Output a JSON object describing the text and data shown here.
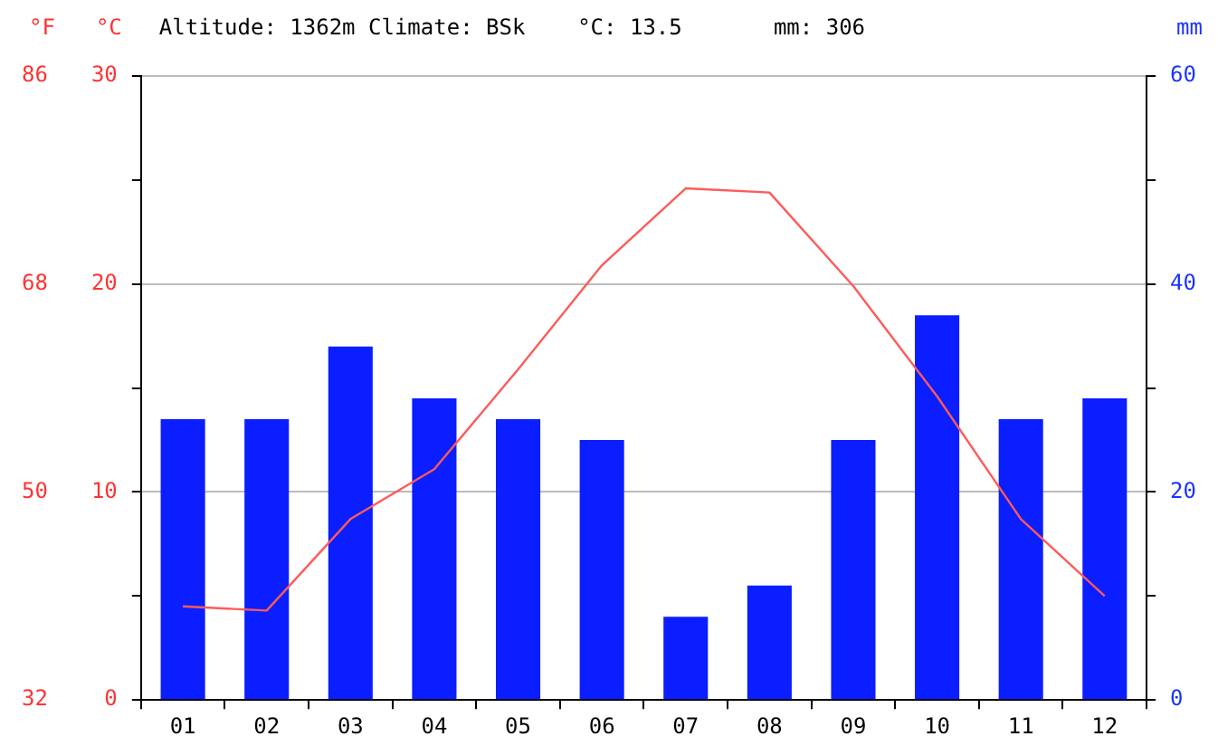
{
  "chart_data": {
    "type": "bar",
    "title": "Altitude: 1362m Climate: BSk    °C: 13.5       mm: 306",
    "categories": [
      "01",
      "02",
      "03",
      "04",
      "05",
      "06",
      "07",
      "08",
      "09",
      "10",
      "11",
      "12"
    ],
    "series": [
      {
        "axis": "y2",
        "color": "#0a1eff",
        "values": [
          27,
          27,
          34,
          29,
          27,
          25,
          8,
          11,
          25,
          37,
          27,
          29
        ]
      },
      {
        "type": "line",
        "axis": "y",
        "color": "#ff5a5a",
        "values": [
          4.5,
          4.3,
          8.7,
          11.1,
          15.9,
          20.9,
          24.6,
          24.4,
          19.9,
          14.6,
          8.7,
          5.0
        ]
      }
    ],
    "ylabel": "°C",
    "ylim": [
      0,
      30
    ],
    "yticks": [
      0,
      {
        "value": 5,
        "label": null
      },
      10,
      {
        "value": 15,
        "label": null
      },
      20,
      {
        "value": 25,
        "label": null
      },
      30
    ],
    "y2label": "mm",
    "y2lim": [
      0,
      60
    ],
    "y2ticks": [
      0,
      {
        "value": 10,
        "label": null
      },
      20,
      {
        "value": 30,
        "label": null
      },
      40,
      {
        "value": 50,
        "label": null
      },
      60
    ],
    "y3label": "°F",
    "y3lim": [
      32,
      86
    ],
    "y3ticks": [
      32,
      50,
      68,
      86
    ],
    "grid": "y",
    "legend": false,
    "marker": "none",
    "line_style": "solid"
  }
}
